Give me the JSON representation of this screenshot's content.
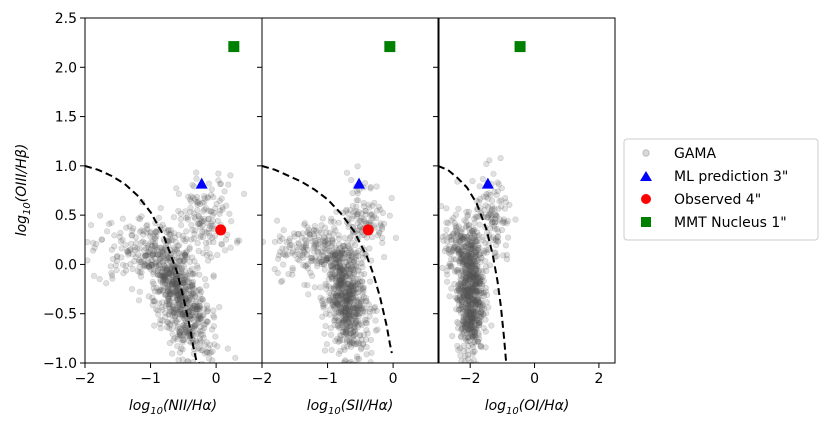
{
  "chart_data": [
    {
      "type": "scatter",
      "xlabel": "log10(NII/Hα)",
      "xlabel_main": "log",
      "xlabel_sub": "10",
      "xlabel_rest": "(NII/Hα)",
      "ylabel": "log10(OIII/Hβ)",
      "ylabel_main": "log",
      "ylabel_sub": "10",
      "ylabel_rest": "(OIII/Hβ)",
      "xlim": [
        -2.0,
        0.7
      ],
      "ylim": [
        -1.0,
        2.5
      ],
      "xticks": [
        -2,
        -1,
        0
      ],
      "xtick_labels": [
        "−2",
        "−1",
        "0"
      ],
      "yticks": [
        -1.0,
        -0.5,
        0.0,
        0.5,
        1.0,
        1.5,
        2.0,
        2.5
      ],
      "ytick_labels": [
        "−1.0",
        "−0.5",
        "0.0",
        "0.5",
        "1.0",
        "1.5",
        "2.0",
        "2.5"
      ],
      "gama_cloud": [
        {
          "cx": -0.55,
          "cy": -0.35,
          "sx": 0.2,
          "sy": 0.3,
          "n": 650,
          "rot": -0.5
        },
        {
          "cx": -1.1,
          "cy": 0.15,
          "sx": 0.4,
          "sy": 0.18,
          "n": 200,
          "rot": 0
        },
        {
          "cx": -0.15,
          "cy": 0.45,
          "sx": 0.22,
          "sy": 0.22,
          "n": 130,
          "rot": 0
        }
      ],
      "demarcation": {
        "x": [
          -2.0,
          -1.8,
          -1.6,
          -1.4,
          -1.2,
          -1.0,
          -0.8,
          -0.6,
          -0.5,
          -0.4,
          -0.35,
          -0.3,
          -0.27,
          -0.25
        ],
        "y": [
          1.0,
          0.96,
          0.9,
          0.82,
          0.7,
          0.53,
          0.29,
          -0.07,
          -0.33,
          -0.64,
          -0.83,
          -0.98,
          -1.0,
          -1.0
        ]
      },
      "ml_prediction": {
        "x": -0.22,
        "y": 0.82
      },
      "observed": {
        "x": 0.07,
        "y": 0.35
      },
      "mmt_nucleus": {
        "x": 0.27,
        "y": 2.21
      }
    },
    {
      "type": "scatter",
      "xlabel": "log10(SII/Hα)",
      "xlabel_main": "log",
      "xlabel_sub": "10",
      "xlabel_rest": "(SII/Hα)",
      "xlim": [
        -2.0,
        0.7
      ],
      "ylim": [
        -1.0,
        2.5
      ],
      "xticks": [
        -2,
        -1,
        0
      ],
      "xtick_labels": [
        "−2",
        "−1",
        "0"
      ],
      "gama_cloud": [
        {
          "cx": -0.72,
          "cy": -0.35,
          "sx": 0.15,
          "sy": 0.3,
          "n": 650,
          "rot": -0.2
        },
        {
          "cx": -1.2,
          "cy": 0.15,
          "sx": 0.3,
          "sy": 0.15,
          "n": 180,
          "rot": 0
        },
        {
          "cx": -0.45,
          "cy": 0.45,
          "sx": 0.18,
          "sy": 0.22,
          "n": 120,
          "rot": 0
        }
      ],
      "demarcation": {
        "x": [
          -2.0,
          -1.8,
          -1.6,
          -1.4,
          -1.2,
          -1.0,
          -0.8,
          -0.6,
          -0.4,
          -0.3,
          -0.2,
          -0.1,
          -0.05,
          -0.02
        ],
        "y": [
          1.0,
          0.96,
          0.9,
          0.84,
          0.76,
          0.66,
          0.52,
          0.34,
          0.08,
          -0.1,
          -0.33,
          -0.62,
          -0.8,
          -0.9
        ]
      },
      "ml_prediction": {
        "x": -0.52,
        "y": 0.82
      },
      "observed": {
        "x": -0.38,
        "y": 0.35
      },
      "mmt_nucleus": {
        "x": -0.05,
        "y": 2.21
      }
    },
    {
      "type": "scatter",
      "xlabel": "log10(OI/Hα)",
      "xlabel_main": "log",
      "xlabel_sub": "10",
      "xlabel_rest": "(OI/Hα)",
      "xlim": [
        -3.0,
        2.5
      ],
      "ylim": [
        -1.0,
        2.5
      ],
      "xticks": [
        -2,
        0,
        2
      ],
      "xtick_labels": [
        "−2",
        "0",
        "2"
      ],
      "gama_cloud": [
        {
          "cx": -2.0,
          "cy": -0.3,
          "sx": 0.2,
          "sy": 0.32,
          "n": 650,
          "rot": 0
        },
        {
          "cx": -2.3,
          "cy": 0.15,
          "sx": 0.3,
          "sy": 0.2,
          "n": 150,
          "rot": 0
        },
        {
          "cx": -1.3,
          "cy": 0.4,
          "sx": 0.3,
          "sy": 0.25,
          "n": 130,
          "rot": 0
        }
      ],
      "demarcation": {
        "x": [
          -3.0,
          -2.7,
          -2.4,
          -2.1,
          -1.8,
          -1.5,
          -1.3,
          -1.15,
          -1.05,
          -0.95,
          -0.9,
          -0.88
        ],
        "y": [
          1.0,
          0.96,
          0.88,
          0.78,
          0.62,
          0.36,
          0.1,
          -0.17,
          -0.42,
          -0.74,
          -0.93,
          -1.0
        ]
      },
      "ml_prediction": {
        "x": -1.45,
        "y": 0.82
      },
      "observed": null,
      "mmt_nucleus": {
        "x": -0.45,
        "y": 2.21
      }
    }
  ],
  "legend": {
    "placement": "right",
    "items": [
      {
        "label": "GAMA",
        "marker": "circle",
        "color": "#808080"
      },
      {
        "label": "ML prediction 3\"",
        "marker": "triangle",
        "color": "#0000ff"
      },
      {
        "label": "Observed 4\"",
        "marker": "circle",
        "color": "#ff0000"
      },
      {
        "label": "MMT Nucleus 1\"",
        "marker": "square",
        "color": "#008000"
      }
    ]
  },
  "colors": {
    "gama": "#555555",
    "ml_prediction": "#0000ff",
    "observed": "#ff0000",
    "mmt_nucleus": "#008000",
    "demarcation": "#000000"
  }
}
